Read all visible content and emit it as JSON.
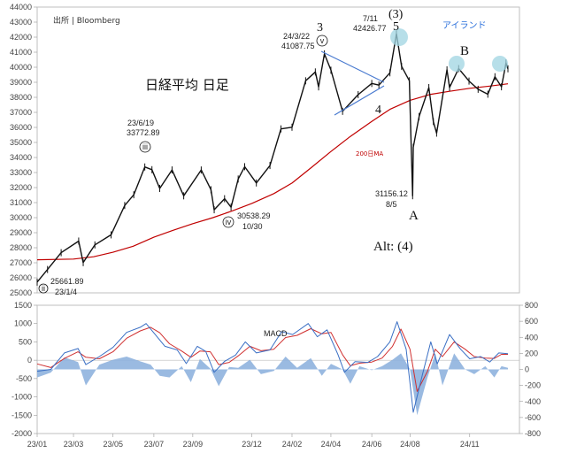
{
  "chart_data": [
    {
      "type": "candlestick",
      "title": "日経平均 日足",
      "source": "出所 | Bloomberg",
      "ylim": [
        25000,
        44000
      ],
      "yticks": [
        25000,
        26000,
        27000,
        28000,
        29000,
        30000,
        31000,
        32000,
        33000,
        34000,
        35000,
        36000,
        37000,
        38000,
        39000,
        40000,
        41000,
        42000,
        43000,
        44000
      ],
      "ytick_labels": [
        "25000",
        "26000",
        "27000",
        "28000",
        "29000",
        "30000",
        "31000",
        "32000",
        "33000",
        "34000",
        "35000",
        "36000",
        "37000",
        "38000",
        "39000",
        "40000",
        "41000",
        "42000",
        "43000",
        "44000"
      ],
      "x_start": "2023-01-04",
      "x_end": "2024-12-30",
      "ma_label": "200日MA",
      "price_series": {
        "name": "日経平均",
        "color": "#111111",
        "points": [
          [
            "2023-01-04",
            25716
          ],
          [
            "2023-01-20",
            26553
          ],
          [
            "2023-02-10",
            27670
          ],
          [
            "2023-03-09",
            28444
          ],
          [
            "2023-03-16",
            27010
          ],
          [
            "2023-04-03",
            28188
          ],
          [
            "2023-04-28",
            28856
          ],
          [
            "2023-05-19",
            30808
          ],
          [
            "2023-06-02",
            31524
          ],
          [
            "2023-06-19",
            33370
          ],
          [
            "2023-06-30",
            33189
          ],
          [
            "2023-07-12",
            31943
          ],
          [
            "2023-07-31",
            33172
          ],
          [
            "2023-08-18",
            31451
          ],
          [
            "2023-09-14",
            33168
          ],
          [
            "2023-09-29",
            31857
          ],
          [
            "2023-10-04",
            30526
          ],
          [
            "2023-10-20",
            31259
          ],
          [
            "2023-10-30",
            30697
          ],
          [
            "2023-11-10",
            32568
          ],
          [
            "2023-11-20",
            33388
          ],
          [
            "2023-12-08",
            32307
          ],
          [
            "2023-12-29",
            33464
          ],
          [
            "2024-01-15",
            35901
          ],
          [
            "2024-02-01",
            36011
          ],
          [
            "2024-02-22",
            39098
          ],
          [
            "2024-03-08",
            39688
          ],
          [
            "2024-03-13",
            38695
          ],
          [
            "2024-03-22",
            40888
          ],
          [
            "2024-04-01",
            39803
          ],
          [
            "2024-04-19",
            37068
          ],
          [
            "2024-05-13",
            38179
          ],
          [
            "2024-06-03",
            38923
          ],
          [
            "2024-06-14",
            38814
          ],
          [
            "2024-07-01",
            39631
          ],
          [
            "2024-07-11",
            42224
          ],
          [
            "2024-07-19",
            40063
          ],
          [
            "2024-07-31",
            39101
          ],
          [
            "2024-08-02",
            35909
          ],
          [
            "2024-08-05",
            31458
          ],
          [
            "2024-08-06",
            34675
          ],
          [
            "2024-08-15",
            36726
          ],
          [
            "2024-08-30",
            38647
          ],
          [
            "2024-09-06",
            36391
          ],
          [
            "2024-09-11",
            35619
          ],
          [
            "2024-09-27",
            39829
          ],
          [
            "2024-10-01",
            38651
          ],
          [
            "2024-10-15",
            39910
          ],
          [
            "2024-10-31",
            39081
          ],
          [
            "2024-11-14",
            38535
          ],
          [
            "2024-11-29",
            38208
          ],
          [
            "2024-12-10",
            39367
          ],
          [
            "2024-12-20",
            38701
          ],
          [
            "2024-12-27",
            40281
          ],
          [
            "2024-12-30",
            39894
          ]
        ]
      },
      "ma_series": {
        "name": "200日MA",
        "color": "#c00000",
        "points": [
          [
            "2023-01-04",
            27200
          ],
          [
            "2023-03-01",
            27250
          ],
          [
            "2023-04-01",
            27400
          ],
          [
            "2023-05-01",
            27700
          ],
          [
            "2023-06-01",
            28100
          ],
          [
            "2023-07-03",
            28700
          ],
          [
            "2023-08-01",
            29150
          ],
          [
            "2023-09-01",
            29600
          ],
          [
            "2023-10-02",
            30000
          ],
          [
            "2023-11-01",
            30450
          ],
          [
            "2023-12-01",
            30950
          ],
          [
            "2024-01-04",
            31600
          ],
          [
            "2024-02-01",
            32300
          ],
          [
            "2024-03-01",
            33300
          ],
          [
            "2024-04-01",
            34400
          ],
          [
            "2024-05-01",
            35400
          ],
          [
            "2024-06-03",
            36400
          ],
          [
            "2024-07-01",
            37200
          ],
          [
            "2024-08-01",
            37800
          ],
          [
            "2024-09-02",
            38200
          ],
          [
            "2024-10-01",
            38400
          ],
          [
            "2024-11-01",
            38600
          ],
          [
            "2024-12-02",
            38750
          ],
          [
            "2024-12-30",
            38900
          ]
        ]
      },
      "annotations": {
        "wave_3": "3",
        "wave_5": "5",
        "wave_3_paren": "(3)",
        "wave_4": "4",
        "wave_A": "A",
        "wave_B": "B",
        "alt_label": "Alt:  (4)",
        "island_label": "アイランド",
        "circle_ii": "ii",
        "circle_iii": "iii",
        "circle_iv": "iv",
        "circle_v": "v",
        "label_ii_value": "25661.89",
        "label_ii_date": "23/1/4",
        "label_iii_date": "23/6/19",
        "label_iii_value": "33772.89",
        "label_iv_value": "30538.29",
        "label_iv_date": "10/30",
        "label_v_date": "24/3/22",
        "label_v_value": "41087.75",
        "label_top_date": "7/11",
        "label_top_value": "42426.77",
        "label_low_value": "31156.12",
        "label_low_date": "8/5"
      },
      "colors": {
        "triangle": "#4a7bd0",
        "island_circle": "#9fd4e2"
      }
    },
    {
      "type": "line+area",
      "title": "MACD",
      "ylim_left": [
        -2000,
        1500
      ],
      "yticks_left": [
        "1500",
        "1000",
        "500",
        "0",
        "-500",
        "-1000",
        "-1500",
        "-2000"
      ],
      "ylim_right": [
        -800,
        800
      ],
      "yticks_right": [
        "800",
        "600",
        "400",
        "200",
        "0",
        "-200",
        "-400",
        "-600",
        "-800"
      ],
      "xtick_labels": [
        "23/01",
        "23/03",
        "23/05",
        "23/07",
        "23/09",
        "23/12",
        "24/02",
        "24/04",
        "24/06",
        "24/08",
        "24/11"
      ],
      "xtick_dates": [
        "2023-01-04",
        "2023-03-01",
        "2023-05-01",
        "2023-07-03",
        "2023-09-01",
        "2023-12-01",
        "2024-02-01",
        "2024-04-01",
        "2024-06-03",
        "2024-08-01",
        "2024-11-01"
      ],
      "series": [
        {
          "name": "MACD",
          "color": "#3a6fc4",
          "points": [
            [
              "2023-01-04",
              -300
            ],
            [
              "2023-01-25",
              -250
            ],
            [
              "2023-02-15",
              200
            ],
            [
              "2023-03-08",
              320
            ],
            [
              "2023-03-20",
              -120
            ],
            [
              "2023-04-10",
              100
            ],
            [
              "2023-05-01",
              350
            ],
            [
              "2023-05-22",
              760
            ],
            [
              "2023-06-12",
              900
            ],
            [
              "2023-06-21",
              1000
            ],
            [
              "2023-07-05",
              700
            ],
            [
              "2023-07-20",
              380
            ],
            [
              "2023-08-08",
              280
            ],
            [
              "2023-08-22",
              -90
            ],
            [
              "2023-09-08",
              380
            ],
            [
              "2023-09-21",
              240
            ],
            [
              "2023-10-04",
              -330
            ],
            [
              "2023-10-20",
              -30
            ],
            [
              "2023-11-06",
              140
            ],
            [
              "2023-11-21",
              500
            ],
            [
              "2023-12-08",
              200
            ],
            [
              "2023-12-29",
              280
            ],
            [
              "2024-01-16",
              780
            ],
            [
              "2024-02-02",
              700
            ],
            [
              "2024-02-26",
              1000
            ],
            [
              "2024-03-11",
              640
            ],
            [
              "2024-03-26",
              830
            ],
            [
              "2024-04-12",
              150
            ],
            [
              "2024-04-22",
              -330
            ],
            [
              "2024-05-08",
              -40
            ],
            [
              "2024-05-28",
              -60
            ],
            [
              "2024-06-12",
              100
            ],
            [
              "2024-07-01",
              500
            ],
            [
              "2024-07-12",
              1050
            ],
            [
              "2024-07-26",
              300
            ],
            [
              "2024-08-06",
              -1420
            ],
            [
              "2024-08-20",
              -400
            ],
            [
              "2024-09-02",
              500
            ],
            [
              "2024-09-12",
              -100
            ],
            [
              "2024-10-01",
              700
            ],
            [
              "2024-10-18",
              300
            ],
            [
              "2024-11-01",
              40
            ],
            [
              "2024-11-18",
              100
            ],
            [
              "2024-12-02",
              -50
            ],
            [
              "2024-12-16",
              200
            ],
            [
              "2024-12-30",
              180
            ]
          ]
        },
        {
          "name": "Signal",
          "color": "#d03030",
          "points": [
            [
              "2023-01-04",
              -100
            ],
            [
              "2023-01-25",
              -200
            ],
            [
              "2023-02-15",
              50
            ],
            [
              "2023-03-08",
              230
            ],
            [
              "2023-03-20",
              80
            ],
            [
              "2023-04-10",
              40
            ],
            [
              "2023-05-01",
              230
            ],
            [
              "2023-05-22",
              600
            ],
            [
              "2023-06-12",
              800
            ],
            [
              "2023-06-28",
              900
            ],
            [
              "2023-07-12",
              750
            ],
            [
              "2023-07-27",
              450
            ],
            [
              "2023-08-15",
              250
            ],
            [
              "2023-08-29",
              80
            ],
            [
              "2023-09-12",
              250
            ],
            [
              "2023-09-28",
              230
            ],
            [
              "2023-10-11",
              -120
            ],
            [
              "2023-10-27",
              -60
            ],
            [
              "2023-11-10",
              120
            ],
            [
              "2023-11-28",
              380
            ],
            [
              "2023-12-15",
              260
            ],
            [
              "2024-01-04",
              300
            ],
            [
              "2024-01-22",
              620
            ],
            [
              "2024-02-09",
              680
            ],
            [
              "2024-03-01",
              860
            ],
            [
              "2024-03-18",
              720
            ],
            [
              "2024-04-01",
              760
            ],
            [
              "2024-04-19",
              150
            ],
            [
              "2024-05-01",
              -150
            ],
            [
              "2024-05-15",
              -80
            ],
            [
              "2024-06-03",
              -50
            ],
            [
              "2024-06-19",
              60
            ],
            [
              "2024-07-05",
              380
            ],
            [
              "2024-07-18",
              850
            ],
            [
              "2024-08-01",
              300
            ],
            [
              "2024-08-12",
              -850
            ],
            [
              "2024-08-28",
              -300
            ],
            [
              "2024-09-09",
              300
            ],
            [
              "2024-09-20",
              100
            ],
            [
              "2024-10-08",
              500
            ],
            [
              "2024-10-25",
              300
            ],
            [
              "2024-11-08",
              100
            ],
            [
              "2024-11-25",
              60
            ],
            [
              "2024-12-09",
              50
            ],
            [
              "2024-12-20",
              160
            ],
            [
              "2024-12-30",
              160
            ]
          ]
        },
        {
          "name": "Histogram",
          "color": "#8fb3de",
          "axis": "right",
          "points": [
            [
              "2023-01-04",
              -100
            ],
            [
              "2023-01-25",
              -40
            ],
            [
              "2023-02-15",
              150
            ],
            [
              "2023-03-08",
              90
            ],
            [
              "2023-03-20",
              -200
            ],
            [
              "2023-04-10",
              60
            ],
            [
              "2023-05-01",
              120
            ],
            [
              "2023-05-22",
              160
            ],
            [
              "2023-06-12",
              100
            ],
            [
              "2023-06-28",
              60
            ],
            [
              "2023-07-12",
              -80
            ],
            [
              "2023-07-27",
              -100
            ],
            [
              "2023-08-15",
              40
            ],
            [
              "2023-08-29",
              -160
            ],
            [
              "2023-09-12",
              130
            ],
            [
              "2023-09-28",
              10
            ],
            [
              "2023-10-11",
              -210
            ],
            [
              "2023-10-27",
              30
            ],
            [
              "2023-11-10",
              20
            ],
            [
              "2023-11-28",
              120
            ],
            [
              "2023-12-15",
              -60
            ],
            [
              "2024-01-04",
              -20
            ],
            [
              "2024-01-22",
              160
            ],
            [
              "2024-02-09",
              20
            ],
            [
              "2024-03-01",
              140
            ],
            [
              "2024-03-18",
              -80
            ],
            [
              "2024-04-01",
              70
            ],
            [
              "2024-04-19",
              0
            ],
            [
              "2024-05-01",
              -180
            ],
            [
              "2024-05-15",
              40
            ],
            [
              "2024-06-03",
              -10
            ],
            [
              "2024-06-19",
              40
            ],
            [
              "2024-07-05",
              120
            ],
            [
              "2024-07-18",
              200
            ],
            [
              "2024-08-01",
              0
            ],
            [
              "2024-08-12",
              -570
            ],
            [
              "2024-08-28",
              -100
            ],
            [
              "2024-09-09",
              200
            ],
            [
              "2024-09-20",
              -200
            ],
            [
              "2024-10-08",
              200
            ],
            [
              "2024-10-25",
              0
            ],
            [
              "2024-11-08",
              -60
            ],
            [
              "2024-11-25",
              40
            ],
            [
              "2024-12-09",
              -100
            ],
            [
              "2024-12-20",
              40
            ],
            [
              "2024-12-30",
              20
            ]
          ]
        }
      ]
    }
  ]
}
